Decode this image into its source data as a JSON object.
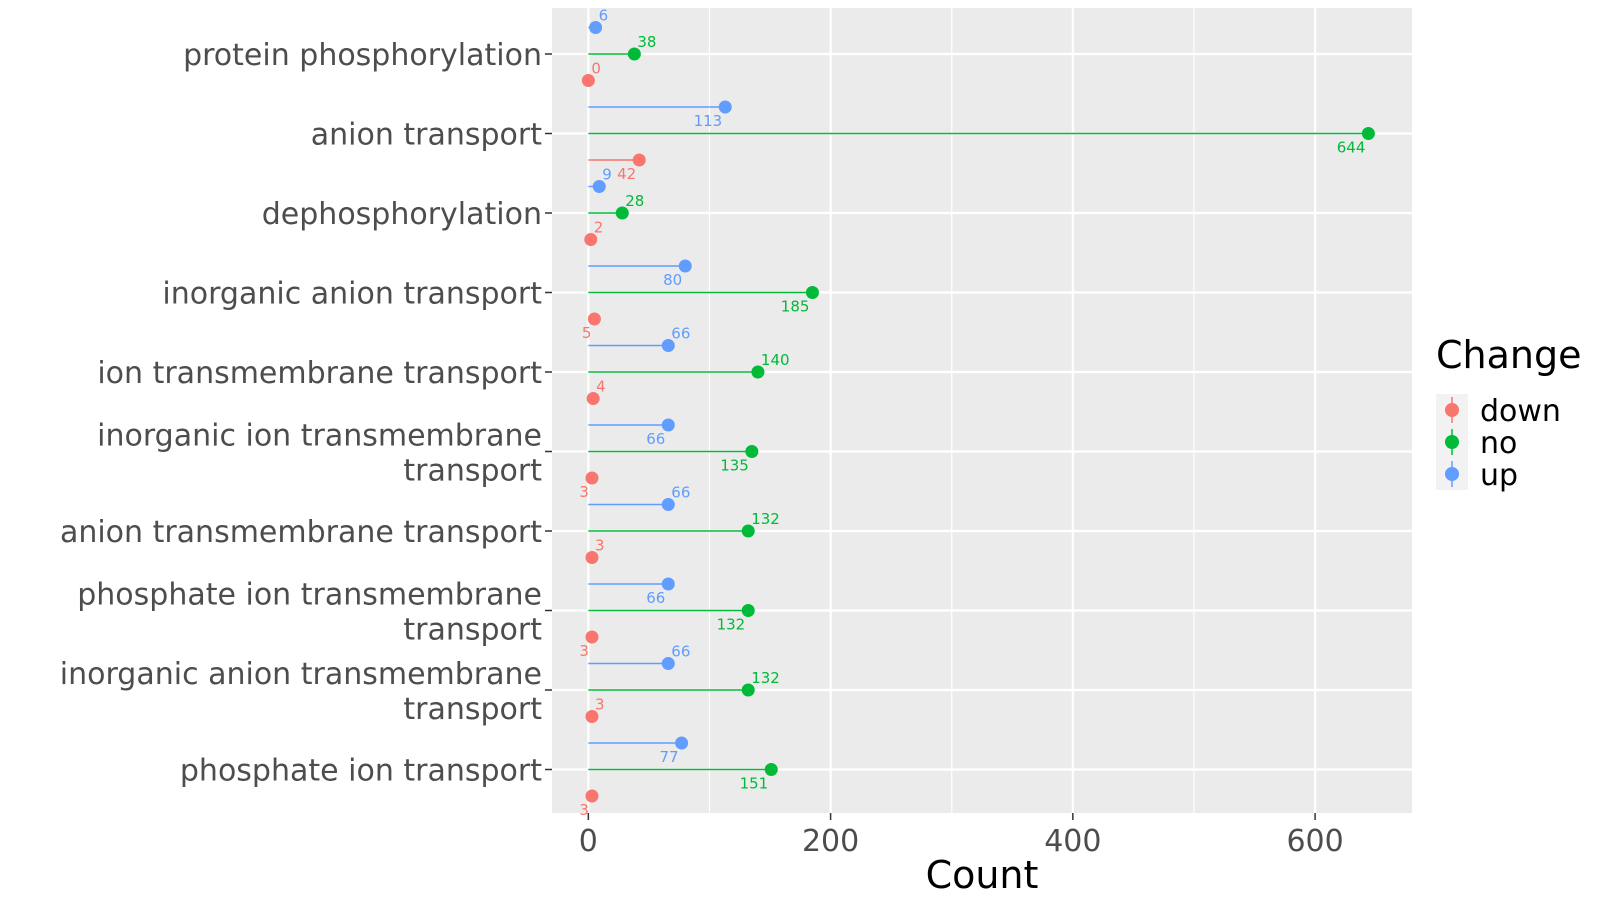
{
  "chart_data": {
    "type": "lollipop",
    "orientation": "horizontal",
    "xlabel": "Count",
    "ylabel": "",
    "xlim": [
      -30,
      680
    ],
    "xticks": [
      0,
      200,
      400,
      600
    ],
    "grid": true,
    "legend": {
      "title": "Change",
      "position": "right"
    },
    "categories": [
      "protein phosphorylation",
      "anion transport",
      "dephosphorylation",
      "inorganic anion transport",
      "ion transmembrane transport",
      "inorganic ion transmembrane transport",
      "anion transmembrane transport",
      "phosphate ion transmembrane transport",
      "inorganic anion transmembrane transport",
      "phosphate ion transport"
    ],
    "series": [
      {
        "name": "down",
        "color": "#F8766D",
        "values": [
          0,
          42,
          2,
          5,
          4,
          3,
          3,
          3,
          3,
          3
        ]
      },
      {
        "name": "no",
        "color": "#00BA38",
        "values": [
          38,
          644,
          28,
          185,
          140,
          135,
          132,
          132,
          132,
          151
        ]
      },
      {
        "name": "up",
        "color": "#619CFF",
        "values": [
          6,
          113,
          9,
          80,
          66,
          66,
          66,
          66,
          66,
          77
        ]
      }
    ]
  }
}
